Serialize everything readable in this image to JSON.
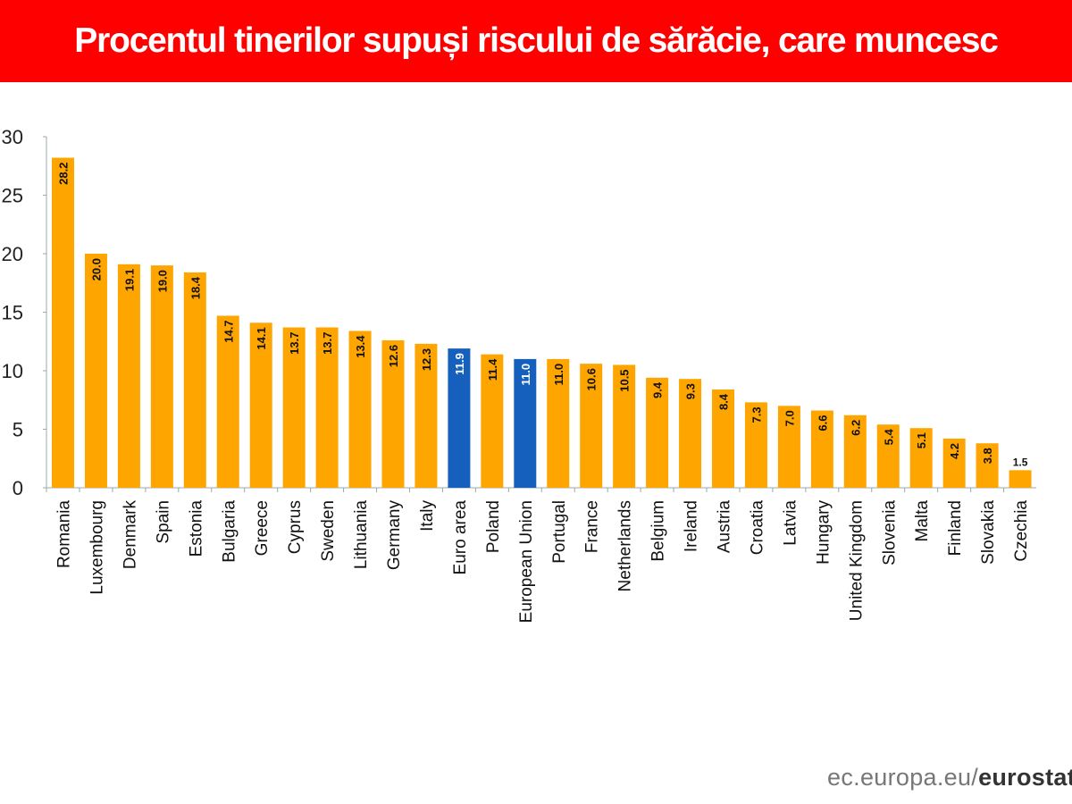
{
  "chart_data": {
    "type": "bar",
    "title": "Procentul tinerilor supuși riscului de sărăcie, care muncesc",
    "xlabel": "",
    "ylabel": "",
    "ylim": [
      0,
      30
    ],
    "yticks": [
      0,
      5,
      10,
      15,
      20,
      25,
      30
    ],
    "grid": false,
    "categories": [
      "Romania",
      "Luxembourg",
      "Denmark",
      "Spain",
      "Estonia",
      "Bulgaria",
      "Greece",
      "Cyprus",
      "Sweden",
      "Lithuania",
      "Germany",
      "Italy",
      "Euro area",
      "Poland",
      "European Union",
      "Portugal",
      "France",
      "Netherlands",
      "Belgium",
      "Ireland",
      "Austria",
      "Croatia",
      "Latvia",
      "Hungary",
      "United Kingdom",
      "Slovenia",
      "Malta",
      "Finland",
      "Slovakia",
      "Czechia"
    ],
    "values": [
      28.2,
      20.0,
      19.1,
      19.0,
      18.4,
      14.7,
      14.1,
      13.7,
      13.7,
      13.4,
      12.6,
      12.3,
      11.9,
      11.4,
      11.0,
      11.0,
      10.6,
      10.5,
      9.4,
      9.3,
      8.4,
      7.3,
      7.0,
      6.6,
      6.2,
      5.4,
      5.1,
      4.2,
      3.8,
      1.5
    ],
    "highlight": [
      "Euro area",
      "European Union"
    ],
    "colors": {
      "default": "#ffa500",
      "highlight": "#1560bd",
      "title_bg": "#ff0000"
    }
  },
  "source": {
    "prefix": "ec.europa.eu/",
    "brand": "eurostat"
  }
}
